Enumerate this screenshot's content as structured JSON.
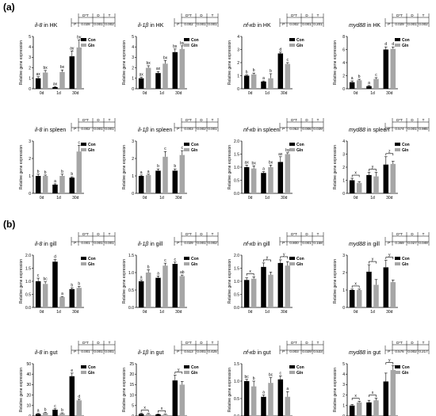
{
  "figure": {
    "panel_labels": [
      "(a)",
      "(b)"
    ]
  },
  "charts": [
    {
      "gene": "il-8",
      "tissue": "in HK",
      "ylim": [
        0,
        5
      ],
      "yticks": [
        0,
        1,
        2,
        3,
        4,
        5
      ],
      "ydec": 0,
      "stats": [
        "0.028",
        "0.001",
        "0.002"
      ],
      "con": [
        1.0,
        0.15,
        3.1
      ],
      "conErr": [
        0.15,
        0.05,
        0.5
      ],
      "gln": [
        1.55,
        1.6,
        3.95
      ],
      "glnErr": [
        0.2,
        0.2,
        0.7
      ],
      "letters": [
        [
          "ax",
          "bx"
        ],
        [
          "ax",
          "bx"
        ],
        [
          "ay",
          "by"
        ]
      ]
    },
    {
      "gene": "il-1β",
      "tissue": "in HK",
      "ylim": [
        0,
        5
      ],
      "yticks": [
        0,
        1,
        2,
        3,
        4,
        5
      ],
      "ydec": 0,
      "stats": [
        "0.002",
        "0.001",
        "0.001"
      ],
      "con": [
        1.0,
        1.5,
        3.5
      ],
      "conErr": [
        0.1,
        0.15,
        0.3
      ],
      "gln": [
        2.0,
        2.4,
        3.8
      ],
      "glnErr": [
        0.2,
        0.3,
        0.3
      ],
      "letters": [
        [
          "ax",
          "bx"
        ],
        [
          "ax",
          "bx"
        ],
        [
          "bx",
          "by"
        ]
      ]
    },
    {
      "gene": "nf-κb",
      "tissue": "in HK",
      "ylim": [
        0,
        4
      ],
      "yticks": [
        0,
        1,
        2,
        3,
        4
      ],
      "ydec": 0,
      "stats": [
        "0.002",
        "0.001",
        "0.201"
      ],
      "con": [
        1.0,
        0.55,
        2.7
      ],
      "conErr": [
        0.05,
        0.05,
        0.1
      ],
      "gln": [
        1.1,
        0.8,
        1.9
      ],
      "glnErr": [
        0.1,
        0.35,
        0.1
      ],
      "letters": [
        [
          "b",
          "b"
        ],
        [
          "a",
          "b"
        ],
        [
          "d",
          "c"
        ]
      ]
    },
    {
      "gene": "myd88",
      "tissue": "in HK",
      "ylim": [
        0,
        8
      ],
      "yticks": [
        0,
        2,
        4,
        6,
        8
      ],
      "ydec": 0,
      "stats": [
        "0.029",
        "0.001",
        "0.002"
      ],
      "con": [
        1.0,
        0.4,
        6.0
      ],
      "conErr": [
        0.2,
        0.1,
        0.4
      ],
      "gln": [
        1.3,
        1.5,
        6.1
      ],
      "glnErr": [
        0.15,
        0.2,
        0.3
      ],
      "letters": [
        [
          "a",
          "b"
        ],
        [
          "a",
          "c"
        ],
        [
          "d",
          "d"
        ]
      ]
    },
    {
      "gene": "il-8",
      "tissue": "in spleen",
      "ylim": [
        0,
        3
      ],
      "yticks": [
        0,
        1,
        2,
        3
      ],
      "ydec": 0,
      "stats": [
        "0.002",
        "0.001",
        "0.001"
      ],
      "con": [
        1.0,
        0.5,
        0.9
      ],
      "conErr": [
        0.1,
        0.05,
        0.05
      ],
      "gln": [
        1.0,
        1.0,
        2.4
      ],
      "glnErr": [
        0.05,
        0.1,
        0.35
      ],
      "letters": [
        [
          "b",
          "b"
        ],
        [
          "a",
          "b"
        ],
        [
          "b",
          "c"
        ]
      ]
    },
    {
      "gene": "il-1β",
      "tissue": "in spleen",
      "ylim": [
        0,
        3
      ],
      "yticks": [
        0,
        1,
        2,
        3
      ],
      "ydec": 0,
      "stats": [
        "0.003",
        "0.002",
        "0.001"
      ],
      "con": [
        1.0,
        1.3,
        1.3
      ],
      "conErr": [
        0.05,
        0.1,
        0.1
      ],
      "gln": [
        1.05,
        2.1,
        2.2
      ],
      "glnErr": [
        0.05,
        0.3,
        0.25
      ],
      "letters": [
        [
          "a",
          "a"
        ],
        [
          "b",
          "c"
        ],
        [
          "b",
          "c"
        ]
      ]
    },
    {
      "gene": "nf-κb",
      "tissue": "in spleen",
      "ylim": [
        0,
        2
      ],
      "yticks": [
        0,
        0.5,
        1.0,
        1.5,
        2.0
      ],
      "ydec": 1,
      "stats": [
        "0.053",
        "0.006",
        "0.039"
      ],
      "con": [
        1.0,
        0.78,
        1.2
      ],
      "conErr": [
        0.08,
        0.05,
        0.2
      ],
      "gln": [
        0.95,
        1.0,
        1.5
      ],
      "glnErr": [
        0.1,
        0.08,
        0.05
      ],
      "letters": [
        [
          "ax",
          "bx"
        ],
        [
          "a",
          "bx"
        ],
        [
          "ax",
          "by"
        ]
      ]
    },
    {
      "gene": "myd88",
      "tissue": "in spleen",
      "ylim": [
        0,
        4
      ],
      "yticks": [
        0,
        1,
        2,
        3,
        4
      ],
      "ydec": 0,
      "stats": [
        "0.574",
        "0.001",
        "0.985"
      ],
      "con": [
        1.0,
        1.4,
        2.2
      ],
      "conErr": [
        0.15,
        0.2,
        0.6
      ],
      "gln": [
        0.8,
        1.3,
        2.25
      ],
      "glnErr": [
        0.1,
        0.3,
        0.2
      ],
      "letters": [
        [
          "",
          ""
        ],
        [
          "",
          ""
        ],
        [
          "",
          ""
        ]
      ],
      "brackets": [
        "x",
        "y",
        "z"
      ]
    },
    {
      "gene": "il-8",
      "tissue": "in gill",
      "ylim": [
        0,
        2
      ],
      "yticks": [
        0,
        0.5,
        1.0,
        1.5,
        2.0
      ],
      "ydec": 1,
      "stats": [
        "0.001",
        "0.001",
        "0.001"
      ],
      "con": [
        1.0,
        1.75,
        0.7
      ],
      "conErr": [
        0.12,
        0.08,
        0.05
      ],
      "gln": [
        0.9,
        0.4,
        0.75
      ],
      "glnErr": [
        0.08,
        0.02,
        0.05
      ],
      "letters": [
        [
          "c",
          "bc"
        ],
        [
          "d",
          "a"
        ],
        [
          "b",
          "b"
        ]
      ]
    },
    {
      "gene": "il-1β",
      "tissue": "in gill",
      "ylim": [
        0,
        1.5
      ],
      "yticks": [
        0,
        0.5,
        1.0,
        1.5
      ],
      "ydec": 1,
      "stats": [
        "0.029",
        "0.001",
        "0.002"
      ],
      "con": [
        0.75,
        0.85,
        1.25
      ],
      "conErr": [
        0.03,
        0.05,
        0.05
      ],
      "gln": [
        1.0,
        1.2,
        0.9
      ],
      "glnErr": [
        0.08,
        0.07,
        0.03
      ],
      "letters": [
        [
          "a",
          "b"
        ],
        [
          "a",
          "c"
        ],
        [
          "c",
          "ab"
        ]
      ]
    },
    {
      "gene": "nf-κb",
      "tissue": "in gill",
      "ylim": [
        0,
        2
      ],
      "yticks": [
        0,
        0.5,
        1.0,
        1.5,
        2.0
      ],
      "ydec": 1,
      "stats": [
        "0.800",
        "0.001",
        "0.158"
      ],
      "con": [
        1.05,
        1.55,
        1.7
      ],
      "conErr": [
        0.08,
        0.15,
        0.12
      ],
      "gln": [
        1.1,
        1.25,
        1.6
      ],
      "glnErr": [
        0.07,
        0.1,
        0.15
      ],
      "letters": [
        [
          "",
          ""
        ],
        [
          "",
          ""
        ],
        [
          "",
          ""
        ]
      ],
      "brackets": [
        "x",
        "y",
        "y"
      ]
    },
    {
      "gene": "myd88",
      "tissue": "in gill",
      "ylim": [
        0,
        3
      ],
      "yticks": [
        0,
        1,
        2,
        3
      ],
      "ydec": 0,
      "stats": [
        "0.369",
        "0.027",
        "0.049"
      ],
      "con": [
        1.0,
        2.05,
        2.3
      ],
      "conErr": [
        0.05,
        0.4,
        0.4
      ],
      "gln": [
        1.0,
        1.3,
        1.45
      ],
      "glnErr": [
        0.05,
        0.3,
        0.12
      ],
      "letters": [
        [
          "",
          ""
        ],
        [
          "",
          ""
        ],
        [
          "",
          ""
        ]
      ],
      "brackets": [
        "x",
        "y",
        "y"
      ]
    },
    {
      "gene": "il-8",
      "tissue": "in gut",
      "ylim": [
        0,
        50
      ],
      "yticks": [
        0,
        10,
        20,
        30,
        40,
        50
      ],
      "ydec": 0,
      "stats": [
        "0.001",
        "0.001",
        "0.001"
      ],
      "con": [
        2.0,
        6.0,
        38.0
      ],
      "conErr": [
        0.5,
        1.0,
        3.0
      ],
      "gln": [
        3.0,
        2.5,
        15.0
      ],
      "glnErr": [
        0.5,
        0.5,
        1.0
      ],
      "letters": [
        [
          "a",
          "b"
        ],
        [
          "c",
          "b"
        ],
        [
          "e",
          "d"
        ]
      ]
    },
    {
      "gene": "il-1β",
      "tissue": "in gut",
      "ylim": [
        0,
        25
      ],
      "yticks": [
        0,
        5,
        10,
        15,
        20,
        25
      ],
      "ydec": 0,
      "stats": [
        "0.513",
        "0.001",
        "0.425"
      ],
      "con": [
        1.0,
        0.8,
        17.0
      ],
      "conErr": [
        0.3,
        0.2,
        2.5
      ],
      "gln": [
        0.9,
        0.7,
        15.0
      ],
      "glnErr": [
        0.3,
        0.2,
        1.5
      ],
      "letters": [
        [
          "",
          ""
        ],
        [
          "",
          ""
        ],
        [
          "",
          ""
        ]
      ],
      "brackets": [
        "x",
        "x",
        "y"
      ]
    },
    {
      "gene": "nf-κb",
      "tissue": "in gut",
      "ylim": [
        0,
        1.5
      ],
      "yticks": [
        0,
        0.5,
        1.0,
        1.5
      ],
      "ydec": 1,
      "stats": [
        "0.003",
        "0.029",
        "0.533"
      ],
      "con": [
        1.0,
        0.55,
        1.05
      ],
      "conErr": [
        0.05,
        0.05,
        0.1
      ],
      "gln": [
        0.85,
        0.95,
        0.55
      ],
      "glnErr": [
        0.15,
        0.15,
        0.15
      ],
      "letters": [
        [
          "bc",
          "b"
        ],
        [
          "a",
          "bc"
        ],
        [
          "c",
          "a"
        ]
      ]
    },
    {
      "gene": "myd88",
      "tissue": "in gut",
      "ylim": [
        0,
        5
      ],
      "yticks": [
        0,
        1,
        2,
        3,
        4,
        5
      ],
      "ydec": 0,
      "stats": [
        "0.576",
        "0.002",
        "0.217"
      ],
      "con": [
        1.0,
        1.3,
        3.3
      ],
      "conErr": [
        0.1,
        0.2,
        0.8
      ],
      "gln": [
        1.3,
        1.5,
        4.4
      ],
      "glnErr": [
        0.1,
        0.2,
        0.4
      ],
      "letters": [
        [
          "",
          ""
        ],
        [
          "",
          ""
        ],
        [
          "",
          ""
        ]
      ],
      "brackets": [
        "x",
        "x",
        "y"
      ]
    }
  ],
  "chart_data": {
    "type": "bar",
    "categories": [
      "0d",
      "1d",
      "30d"
    ],
    "ylabel": "Relative gene expression",
    "legend": [
      "Con",
      "Gln"
    ],
    "legend_placement": "top-right",
    "stats_header": [
      "D*T",
      "D",
      "T"
    ],
    "stats_row_label": "P",
    "colors": {
      "Con": "#000000",
      "Gln": "#a6a6a6"
    }
  }
}
